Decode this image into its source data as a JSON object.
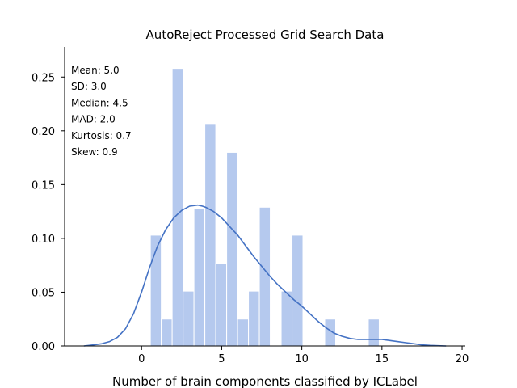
{
  "chart_data": {
    "type": "histogram",
    "title": "AutoReject Processed Grid Search Data",
    "xlabel": "Number of brain components classified by ICLabel",
    "ylabel": "",
    "xlim": [
      -4.8,
      20.2
    ],
    "ylim": [
      0,
      0.278
    ],
    "x_ticks": [
      0,
      5,
      10,
      15,
      20
    ],
    "y_ticks": [
      0.0,
      0.05,
      0.1,
      0.15,
      0.2,
      0.25
    ],
    "x_tick_labels": [
      "0",
      "5",
      "10",
      "15",
      "20"
    ],
    "y_tick_labels": [
      "0.00",
      "0.05",
      "0.10",
      "0.15",
      "0.20",
      "0.25"
    ],
    "bin_width": 0.68,
    "bars": [
      {
        "x0": 0.55,
        "density": 0.103
      },
      {
        "x0": 1.23,
        "density": 0.025
      },
      {
        "x0": 1.91,
        "density": 0.258
      },
      {
        "x0": 2.59,
        "density": 0.051
      },
      {
        "x0": 3.27,
        "density": 0.128
      },
      {
        "x0": 3.95,
        "density": 0.206
      },
      {
        "x0": 4.63,
        "density": 0.077
      },
      {
        "x0": 5.31,
        "density": 0.18
      },
      {
        "x0": 5.99,
        "density": 0.025
      },
      {
        "x0": 6.67,
        "density": 0.051
      },
      {
        "x0": 7.35,
        "density": 0.129
      },
      {
        "x0": 8.71,
        "density": 0.051
      },
      {
        "x0": 9.39,
        "density": 0.103
      },
      {
        "x0": 11.43,
        "density": 0.025
      },
      {
        "x0": 14.15,
        "density": 0.025
      }
    ],
    "kde": {
      "x": [
        -3.6,
        -3.0,
        -2.5,
        -2.0,
        -1.5,
        -1.0,
        -0.5,
        0.0,
        0.5,
        1.0,
        1.5,
        2.0,
        2.5,
        3.0,
        3.5,
        3.8,
        4.0,
        4.5,
        5.0,
        5.5,
        6.0,
        6.5,
        7.0,
        7.5,
        8.0,
        8.5,
        9.0,
        9.5,
        10.0,
        10.5,
        11.0,
        11.5,
        12.0,
        12.5,
        13.0,
        13.5,
        14.0,
        14.5,
        15.0,
        15.5,
        16.0,
        16.5,
        17.0,
        17.5,
        18.0,
        18.5,
        19.0
      ],
      "y": [
        0.0,
        0.001,
        0.002,
        0.004,
        0.008,
        0.016,
        0.03,
        0.05,
        0.073,
        0.093,
        0.108,
        0.119,
        0.126,
        0.13,
        0.131,
        0.13,
        0.129,
        0.125,
        0.119,
        0.111,
        0.103,
        0.093,
        0.083,
        0.074,
        0.065,
        0.057,
        0.05,
        0.043,
        0.037,
        0.03,
        0.023,
        0.017,
        0.012,
        0.009,
        0.007,
        0.006,
        0.006,
        0.006,
        0.006,
        0.005,
        0.004,
        0.003,
        0.002,
        0.001,
        0.0005,
        0.0002,
        0.0
      ]
    },
    "bar_color": "#b5c9ee",
    "line_color": "#4472c4",
    "grid": false,
    "legend": false,
    "stats_box": {
      "position": "top-left",
      "lines": [
        "Mean: 5.0",
        "SD: 3.0",
        "Median: 4.5",
        "MAD: 2.0",
        "Kurtosis: 0.7",
        "Skew: 0.9"
      ]
    }
  }
}
